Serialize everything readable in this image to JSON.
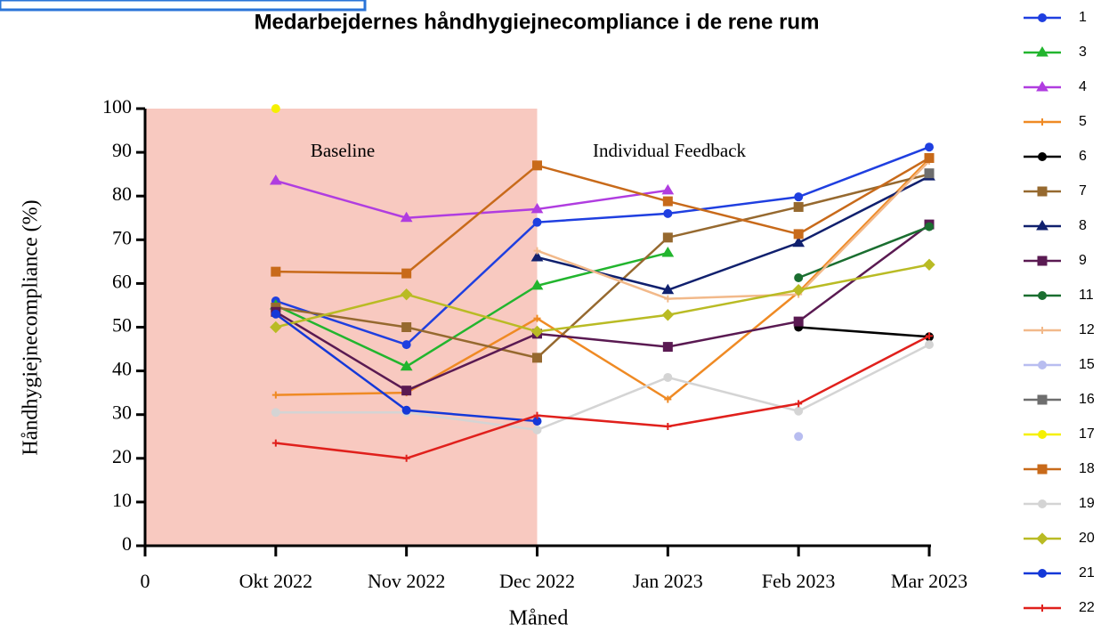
{
  "chart_data": {
    "type": "line",
    "title": "Medarbejdernes håndhygiejnecompliance i de rene rum",
    "x_label": "Måned",
    "y_label": "Håndhygiejnecompliance (%)",
    "categories": [
      "0",
      "Okt 2022",
      "Nov 2022",
      "Dec 2022",
      "Jan 2023",
      "Feb 2023",
      "Mar 2023"
    ],
    "ylim": [
      0,
      100
    ],
    "yticks": [
      0,
      10,
      20,
      30,
      40,
      50,
      60,
      70,
      80,
      90,
      100
    ],
    "shade": {
      "from": "0",
      "to": "Dec 2022",
      "color": "#f8c9c0"
    },
    "annotations": [
      "Baseline",
      "Individual Feedback"
    ],
    "series": [
      {
        "name": "1",
        "color": "#1f3fe0",
        "marker": "circle",
        "values": [
          null,
          56,
          46,
          74,
          76,
          79.8,
          91.2
        ]
      },
      {
        "name": "3",
        "color": "#22b52e",
        "marker": "triangle",
        "values": [
          null,
          55,
          41,
          59.5,
          67,
          null,
          null
        ]
      },
      {
        "name": "4",
        "color": "#b03de0",
        "marker": "triangle",
        "values": [
          null,
          83.5,
          75,
          77,
          81.3,
          null,
          null
        ]
      },
      {
        "name": "5",
        "color": "#ef8a24",
        "marker": "plus",
        "values": [
          null,
          34.5,
          35,
          52,
          33.5,
          58,
          88.5
        ]
      },
      {
        "name": "6",
        "color": "#000000",
        "marker": "circle",
        "values": [
          null,
          null,
          null,
          null,
          null,
          50,
          47.8
        ]
      },
      {
        "name": "7",
        "color": "#96692f",
        "marker": "square",
        "values": [
          null,
          54.5,
          50,
          43,
          70.5,
          77.5,
          85
        ]
      },
      {
        "name": "8",
        "color": "#10206e",
        "marker": "triangle",
        "values": [
          null,
          null,
          null,
          66,
          58.5,
          69.3,
          84.5
        ]
      },
      {
        "name": "9",
        "color": "#5a1a52",
        "marker": "square",
        "values": [
          null,
          53.5,
          35.5,
          48.5,
          45.5,
          51.3,
          73.5
        ]
      },
      {
        "name": "11",
        "color": "#1a6e30",
        "marker": "circle",
        "values": [
          null,
          null,
          null,
          null,
          null,
          61.3,
          73
        ]
      },
      {
        "name": "12",
        "color": "#f2b98a",
        "marker": "plus",
        "values": [
          null,
          null,
          null,
          67.5,
          56.5,
          57.5,
          88
        ]
      },
      {
        "name": "15",
        "color": "#b8bdf0",
        "marker": "circle",
        "values": [
          null,
          null,
          null,
          null,
          null,
          25,
          null
        ]
      },
      {
        "name": "16",
        "color": "#6e6e6e",
        "marker": "square",
        "values": [
          null,
          null,
          null,
          null,
          null,
          null,
          85.2
        ]
      },
      {
        "name": "17",
        "color": "#f5f000",
        "marker": "circle",
        "values": [
          null,
          100,
          null,
          null,
          null,
          null,
          null
        ]
      },
      {
        "name": "18",
        "color": "#c86a1a",
        "marker": "square",
        "values": [
          null,
          62.7,
          62.3,
          87,
          78.8,
          71.3,
          88.7
        ]
      },
      {
        "name": "19",
        "color": "#d4d4d4",
        "marker": "circle",
        "values": [
          null,
          30.5,
          30.5,
          26.5,
          38.5,
          30.8,
          46
        ]
      },
      {
        "name": "20",
        "color": "#b9bb24",
        "marker": "diamond",
        "values": [
          null,
          50,
          57.5,
          49,
          52.8,
          58.5,
          64.3
        ]
      },
      {
        "name": "21",
        "color": "#1438d8",
        "marker": "circle",
        "values": [
          null,
          53,
          31,
          28.5,
          null,
          null,
          null
        ]
      },
      {
        "name": "22",
        "color": "#e0201c",
        "marker": "plus",
        "values": [
          null,
          23.5,
          20,
          29.8,
          27.3,
          32.5,
          48
        ]
      }
    ]
  }
}
